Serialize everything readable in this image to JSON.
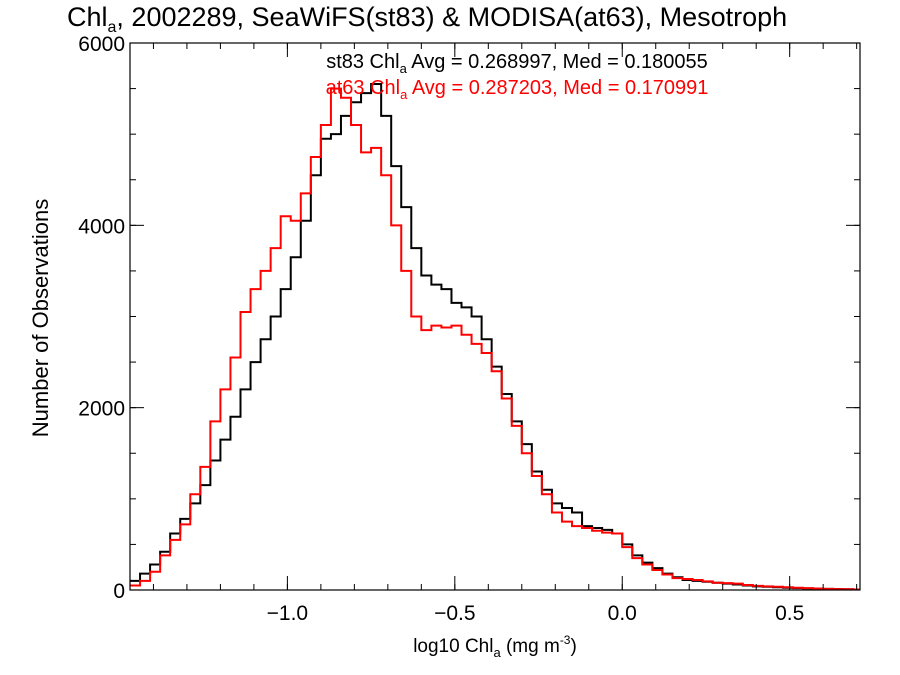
{
  "chart_data": {
    "type": "line",
    "step": true,
    "title_main": "Chl",
    "title_sub": "a",
    "title_rest": ", 2002289, SeaWiFS(st83) & MODISA(at63), Mesotroph",
    "xlabel_main": "log10 Chl",
    "xlabel_sub": "a",
    "xlabel_rest": " (mg m",
    "xlabel_sup": "-3",
    "xlabel_end": ")",
    "ylabel": "Number of Observations",
    "xlim": [
      -1.47,
      0.71
    ],
    "ylim": [
      0,
      6000
    ],
    "x_ticks": [
      {
        "value": -1.0,
        "label": "−1.0"
      },
      {
        "value": -0.5,
        "label": "−0.5"
      },
      {
        "value": 0.0,
        "label": "0.0"
      },
      {
        "value": 0.5,
        "label": "0.5"
      }
    ],
    "x_minor_step": 0.1,
    "y_ticks": [
      {
        "value": 0,
        "label": "0"
      },
      {
        "value": 2000,
        "label": "2000"
      },
      {
        "value": 4000,
        "label": "4000"
      },
      {
        "value": 6000,
        "label": "6000"
      }
    ],
    "y_minor_step": 500,
    "annotations": [
      {
        "pre": "st83 Chl",
        "sub": "a",
        "post": " Avg = 0.268997, Med = 0.180055",
        "color": "#000000"
      },
      {
        "pre": "at63 Chl",
        "sub": "a",
        "post": " Avg = 0.287203, Med = 0.170991",
        "color": "#ff0000"
      }
    ],
    "series": [
      {
        "color": "#000000",
        "x": [
          -1.47,
          -1.44,
          -1.41,
          -1.38,
          -1.35,
          -1.32,
          -1.29,
          -1.26,
          -1.23,
          -1.2,
          -1.17,
          -1.14,
          -1.11,
          -1.08,
          -1.05,
          -1.02,
          -0.99,
          -0.96,
          -0.93,
          -0.9,
          -0.87,
          -0.84,
          -0.81,
          -0.78,
          -0.75,
          -0.72,
          -0.69,
          -0.66,
          -0.63,
          -0.6,
          -0.57,
          -0.54,
          -0.51,
          -0.48,
          -0.45,
          -0.42,
          -0.39,
          -0.36,
          -0.33,
          -0.3,
          -0.27,
          -0.24,
          -0.21,
          -0.18,
          -0.15,
          -0.12,
          -0.09,
          -0.06,
          -0.03,
          0.0,
          0.03,
          0.06,
          0.09,
          0.12,
          0.15,
          0.18,
          0.21,
          0.24,
          0.27,
          0.3,
          0.33,
          0.36,
          0.39,
          0.42,
          0.45,
          0.48,
          0.51,
          0.54,
          0.57,
          0.6,
          0.63,
          0.66,
          0.69
        ],
        "y": [
          100,
          180,
          280,
          420,
          620,
          780,
          950,
          1150,
          1420,
          1650,
          1900,
          2200,
          2500,
          2750,
          3000,
          3300,
          3650,
          4050,
          4550,
          4950,
          5000,
          5200,
          5350,
          5450,
          5550,
          5200,
          4650,
          4200,
          3750,
          3450,
          3350,
          3300,
          3150,
          3100,
          3000,
          2750,
          2450,
          2150,
          1850,
          1600,
          1300,
          1100,
          950,
          900,
          850,
          700,
          680,
          660,
          620,
          500,
          380,
          300,
          240,
          180,
          140,
          110,
          100,
          90,
          80,
          70,
          60,
          50,
          40,
          35,
          30,
          25,
          20,
          18,
          15,
          12,
          10,
          8,
          5
        ]
      },
      {
        "color": "#ff0000",
        "x": [
          -1.47,
          -1.44,
          -1.41,
          -1.38,
          -1.35,
          -1.32,
          -1.29,
          -1.26,
          -1.23,
          -1.2,
          -1.17,
          -1.14,
          -1.11,
          -1.08,
          -1.05,
          -1.02,
          -0.99,
          -0.96,
          -0.93,
          -0.9,
          -0.87,
          -0.84,
          -0.81,
          -0.78,
          -0.75,
          -0.72,
          -0.69,
          -0.66,
          -0.63,
          -0.6,
          -0.57,
          -0.54,
          -0.51,
          -0.48,
          -0.45,
          -0.42,
          -0.39,
          -0.36,
          -0.33,
          -0.3,
          -0.27,
          -0.24,
          -0.21,
          -0.18,
          -0.15,
          -0.12,
          -0.09,
          -0.06,
          -0.03,
          0.0,
          0.03,
          0.06,
          0.09,
          0.12,
          0.15,
          0.18,
          0.21,
          0.24,
          0.27,
          0.3,
          0.33,
          0.36,
          0.39,
          0.42,
          0.45,
          0.48,
          0.51,
          0.54,
          0.57,
          0.6,
          0.63,
          0.66,
          0.69
        ],
        "y": [
          50,
          100,
          200,
          380,
          550,
          720,
          1050,
          1350,
          1850,
          2200,
          2550,
          3050,
          3300,
          3500,
          3750,
          4100,
          4050,
          4350,
          4750,
          5100,
          5500,
          5400,
          5100,
          4800,
          4850,
          4550,
          4000,
          3500,
          3000,
          2850,
          2900,
          2880,
          2900,
          2800,
          2700,
          2600,
          2400,
          2100,
          1800,
          1500,
          1250,
          1050,
          850,
          750,
          700,
          680,
          650,
          630,
          620,
          470,
          350,
          280,
          220,
          170,
          130,
          120,
          110,
          95,
          80,
          75,
          70,
          55,
          45,
          40,
          35,
          30,
          25,
          20,
          16,
          12,
          10,
          8,
          5
        ]
      }
    ]
  }
}
